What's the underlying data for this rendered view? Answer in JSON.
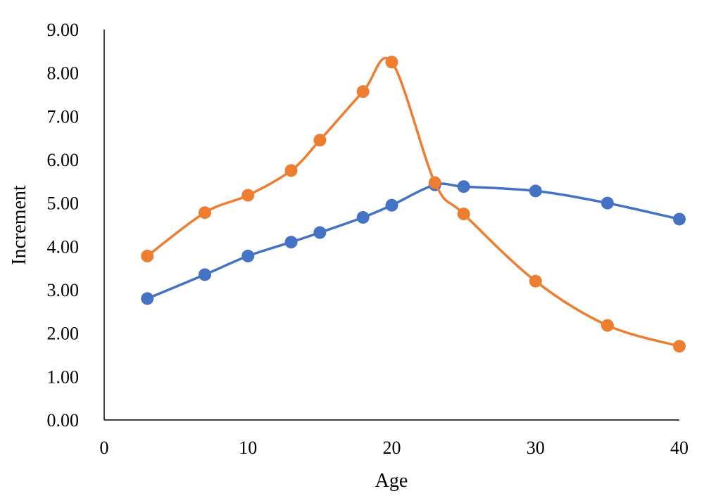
{
  "chart_data": {
    "type": "line",
    "title": "",
    "xlabel": "Age",
    "ylabel": "Increment",
    "xlim": [
      0,
      40
    ],
    "ylim": [
      0,
      9
    ],
    "x_ticks": [
      "0",
      "10",
      "20",
      "30",
      "40"
    ],
    "y_ticks": [
      "0.00",
      "1.00",
      "2.00",
      "3.00",
      "4.00",
      "5.00",
      "6.00",
      "7.00",
      "8.00",
      "9.00"
    ],
    "grid": false,
    "legend": "none",
    "series": [
      {
        "color": "#4472C4",
        "smooth": true,
        "points": [
          {
            "x": 3,
            "y": 2.8
          },
          {
            "x": 7,
            "y": 3.35
          },
          {
            "x": 10,
            "y": 3.78
          },
          {
            "x": 13,
            "y": 4.1
          },
          {
            "x": 15,
            "y": 4.32
          },
          {
            "x": 18,
            "y": 4.67
          },
          {
            "x": 20,
            "y": 4.95
          },
          {
            "x": 23,
            "y": 5.42
          },
          {
            "x": 25,
            "y": 5.38
          },
          {
            "x": 30,
            "y": 5.28
          },
          {
            "x": 35,
            "y": 5.0
          },
          {
            "x": 40,
            "y": 4.63
          }
        ]
      },
      {
        "color": "#ED7D31",
        "smooth": true,
        "points": [
          {
            "x": 3,
            "y": 3.78
          },
          {
            "x": 7,
            "y": 4.78
          },
          {
            "x": 10,
            "y": 5.18
          },
          {
            "x": 13,
            "y": 5.75
          },
          {
            "x": 15,
            "y": 6.45
          },
          {
            "x": 18,
            "y": 7.57
          },
          {
            "x": 20,
            "y": 8.25
          },
          {
            "x": 23,
            "y": 5.47
          },
          {
            "x": 25,
            "y": 4.75
          },
          {
            "x": 30,
            "y": 3.2
          },
          {
            "x": 35,
            "y": 2.18
          },
          {
            "x": 40,
            "y": 1.7
          }
        ]
      }
    ]
  }
}
